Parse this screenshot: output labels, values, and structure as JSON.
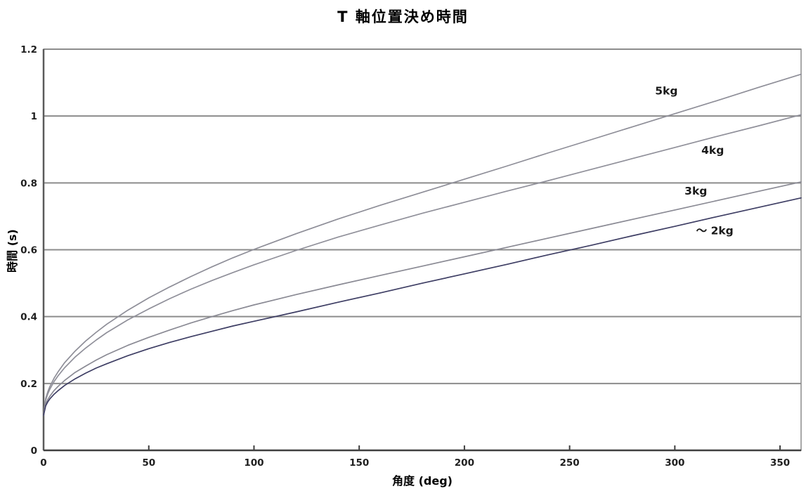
{
  "title": "T 軸位置決め時間",
  "chart_data": {
    "type": "line",
    "title": "T 軸位置決め時間",
    "xlabel": "角度 (deg)",
    "ylabel": "時間 (s)",
    "xlim": [
      0,
      360
    ],
    "ylim": [
      0,
      1.2
    ],
    "x_ticks": [
      0,
      50,
      100,
      150,
      200,
      250,
      300,
      350
    ],
    "y_ticks": [
      0,
      0.2,
      0.4,
      0.6,
      0.8,
      1,
      1.2
    ],
    "y_tick_labels": [
      "0",
      "0.2",
      "0.4",
      "0.6",
      "0.8",
      "1",
      "1.2"
    ],
    "grid": "horizontal-only",
    "legend": "inline-curve-labels",
    "x": [
      0,
      1,
      2,
      3,
      5,
      7,
      10,
      15,
      20,
      25,
      30,
      40,
      50,
      60,
      70,
      80,
      90,
      100,
      120,
      140,
      160,
      180,
      200,
      220,
      240,
      260,
      280,
      300,
      320,
      340,
      360
    ],
    "series": [
      {
        "name": "5kg",
        "color": "#8e8e98",
        "label_x": 296,
        "label_y": 1.075,
        "values": [
          0.105,
          0.155,
          0.175,
          0.191,
          0.216,
          0.236,
          0.262,
          0.297,
          0.327,
          0.353,
          0.377,
          0.419,
          0.456,
          0.489,
          0.52,
          0.549,
          0.576,
          0.601,
          0.648,
          0.692,
          0.733,
          0.772,
          0.811,
          0.85,
          0.89,
          0.929,
          0.968,
          1.007,
          1.046,
          1.086,
          1.125
        ]
      },
      {
        "name": "4kg",
        "color": "#90909a",
        "label_x": 318,
        "label_y": 0.897,
        "values": [
          0.105,
          0.15,
          0.169,
          0.183,
          0.206,
          0.224,
          0.247,
          0.279,
          0.306,
          0.33,
          0.352,
          0.39,
          0.423,
          0.454,
          0.482,
          0.508,
          0.532,
          0.555,
          0.598,
          0.638,
          0.674,
          0.709,
          0.742,
          0.775,
          0.807,
          0.84,
          0.873,
          0.906,
          0.939,
          0.971,
          1.004
        ]
      },
      {
        "name": "3kg",
        "color": "#8a8a94",
        "label_x": 310,
        "label_y": 0.775,
        "values": [
          0.105,
          0.138,
          0.152,
          0.162,
          0.179,
          0.192,
          0.209,
          0.233,
          0.252,
          0.27,
          0.286,
          0.314,
          0.338,
          0.36,
          0.381,
          0.4,
          0.418,
          0.435,
          0.466,
          0.495,
          0.523,
          0.551,
          0.579,
          0.607,
          0.635,
          0.663,
          0.691,
          0.719,
          0.747,
          0.775,
          0.803
        ]
      },
      {
        "name": "～ 2kg",
        "color": "#3e3e64",
        "label_x": 319,
        "label_y": 0.657,
        "values": [
          0.105,
          0.133,
          0.145,
          0.154,
          0.168,
          0.179,
          0.194,
          0.214,
          0.231,
          0.246,
          0.259,
          0.283,
          0.304,
          0.323,
          0.34,
          0.356,
          0.372,
          0.386,
          0.414,
          0.443,
          0.471,
          0.5,
          0.528,
          0.556,
          0.585,
          0.613,
          0.642,
          0.67,
          0.699,
          0.727,
          0.755
        ]
      }
    ],
    "colors": {
      "background": "#ffffff",
      "gridline": "#8c8c8c",
      "plot_border": "#8c8c8c",
      "x_axis_line": "#3f3f3f",
      "y_axis_line": "#5a5a5a",
      "tick_label": "#1f1f1f",
      "series_label": "#1a1a1a"
    }
  }
}
